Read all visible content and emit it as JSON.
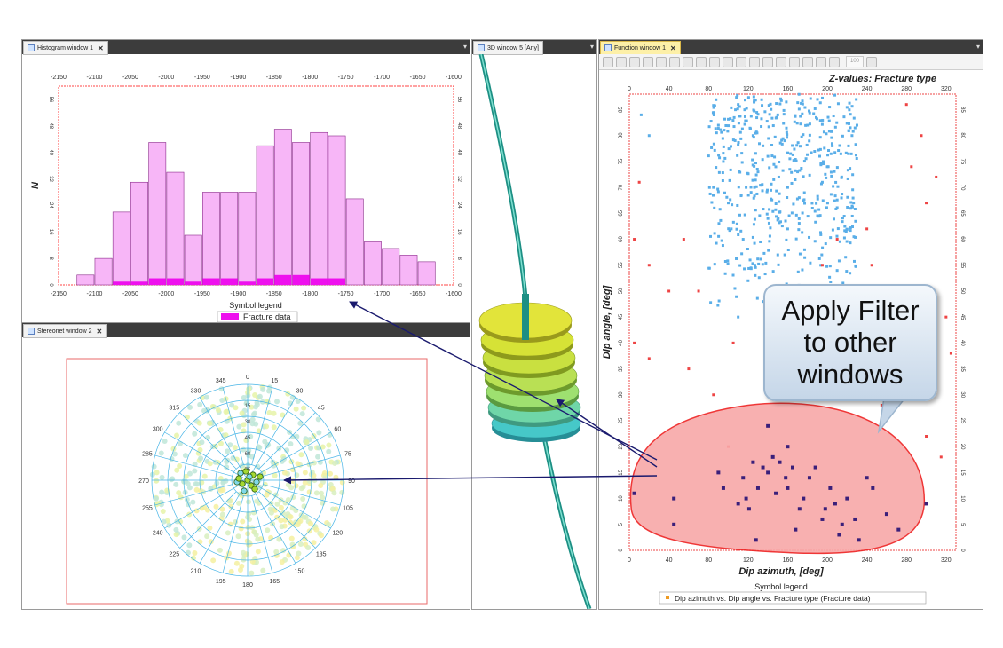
{
  "windows": {
    "histogram": {
      "title": "Histogram window 1"
    },
    "stereonet": {
      "title": "Stereonet window 2"
    },
    "view3d": {
      "title": "3D window 5 [Any]"
    },
    "function": {
      "title": "Function window 1"
    }
  },
  "histogram": {
    "ylabel": "N",
    "legend_title": "Symbol legend",
    "legend_item": "Fracture data",
    "x_ticks": [
      "-2150",
      "-2100",
      "-2050",
      "-2000",
      "-1950",
      "-1900",
      "-1850",
      "-1800",
      "-1750",
      "-1700",
      "-1650",
      "-1600"
    ],
    "y_ticks": [
      "0",
      "8",
      "16",
      "24",
      "32",
      "40",
      "48",
      "56"
    ],
    "colors": {
      "bar": "#f7b6f7",
      "bar_edge": "#8a2a8a",
      "highlight": "#ee10ee",
      "frame": "#ff4444"
    }
  },
  "stereonet": {
    "azimuth_labels": [
      "0",
      "15",
      "30",
      "45",
      "60",
      "75",
      "90",
      "105",
      "120",
      "135",
      "150",
      "165",
      "180",
      "195",
      "210",
      "225",
      "240",
      "255",
      "270",
      "285",
      "300",
      "315",
      "330",
      "345"
    ],
    "radial_labels": [
      "75",
      "60",
      "45",
      "30",
      "15"
    ]
  },
  "function_window": {
    "zvalues_label": "Z-values: Fracture type",
    "xlabel": "Dip azimuth, [deg]",
    "ylabel": "Dip angle, [deg]",
    "x_ticks": [
      "0",
      "40",
      "80",
      "120",
      "160",
      "200",
      "240",
      "280",
      "320"
    ],
    "y_ticks": [
      "0",
      "5",
      "10",
      "15",
      "20",
      "25",
      "30",
      "35",
      "40",
      "45",
      "50",
      "55",
      "60",
      "65",
      "70",
      "75",
      "80",
      "85"
    ],
    "legend_title": "Symbol legend",
    "legend_item": "Dip azimuth vs. Dip angle vs. Fracture type (Fracture data)",
    "zoom_value": "100",
    "colors": {
      "blue": "#5aaee8",
      "red": "#ee4444",
      "selected": "#3a1f7a",
      "lasso_fill": "#f8a8a8",
      "lasso_edge": "#ee2222"
    }
  },
  "callout": {
    "lines": [
      "Apply Filter",
      "to other",
      "windows"
    ]
  },
  "chart_data": [
    {
      "type": "bar",
      "title": "",
      "xlabel": "",
      "ylabel": "N",
      "xlim": [
        -2150,
        -1600
      ],
      "ylim": [
        0,
        60
      ],
      "bin_edges": [
        -2125,
        -2100,
        -2075,
        -2050,
        -2025,
        -2000,
        -1975,
        -1950,
        -1925,
        -1900,
        -1875,
        -1850,
        -1825,
        -1800,
        -1775,
        -1750,
        -1725,
        -1700,
        -1675,
        -1650,
        -1625
      ],
      "series": [
        {
          "name": "Fracture data",
          "values": [
            3,
            8,
            22,
            31,
            43,
            34,
            15,
            28,
            28,
            28,
            42,
            47,
            43,
            46,
            45,
            26,
            13,
            11,
            9,
            7
          ]
        },
        {
          "name": "",
          "values": [
            0,
            0,
            1,
            1,
            2,
            2,
            1,
            2,
            2,
            1,
            2,
            3,
            3,
            2,
            2,
            0,
            0,
            0,
            0,
            0
          ]
        }
      ]
    },
    {
      "type": "scatter",
      "title": "",
      "xlabel": "Dip azimuth, [deg]",
      "ylabel": "Dip angle, [deg]",
      "xlim": [
        0,
        330
      ],
      "ylim": [
        0,
        88
      ],
      "legend": "Z-values: Fracture type",
      "series": [
        {
          "name": "",
          "points": [
            [
              12,
              84
            ],
            [
              20,
              80
            ],
            [
              110,
              86
            ],
            [
              125,
              80
            ],
            [
              150,
              84
            ],
            [
              180,
              82
            ],
            [
              205,
              78
            ],
            [
              95,
              75
            ],
            [
              130,
              73
            ],
            [
              160,
              70
            ],
            [
              100,
              67
            ],
            [
              140,
              64
            ],
            [
              185,
              66
            ],
            [
              115,
              60
            ],
            [
              150,
              57
            ],
            [
              120,
              52
            ],
            [
              135,
              48
            ],
            [
              170,
              73
            ],
            [
              195,
              71
            ],
            [
              90,
              82
            ],
            [
              225,
              80
            ],
            [
              140,
              76
            ],
            [
              118,
              70
            ],
            [
              103,
              62
            ],
            [
              160,
              62
            ],
            [
              122,
              56
            ],
            [
              150,
              50
            ],
            [
              110,
              45
            ],
            [
              145,
              44
            ],
            [
              200,
              74
            ],
            [
              230,
              82
            ],
            [
              85,
              70
            ]
          ]
        },
        {
          "name": "",
          "points": [
            [
              10,
              71
            ],
            [
              5,
              60
            ],
            [
              20,
              55
            ],
            [
              40,
              50
            ],
            [
              5,
              40
            ],
            [
              20,
              37
            ],
            [
              55,
              60
            ],
            [
              60,
              35
            ],
            [
              70,
              50
            ],
            [
              85,
              30
            ],
            [
              100,
              20
            ],
            [
              105,
              40
            ],
            [
              195,
              55
            ],
            [
              210,
              60
            ],
            [
              240,
              62
            ],
            [
              245,
              55
            ],
            [
              260,
              45
            ],
            [
              270,
              38
            ],
            [
              280,
              86
            ],
            [
              285,
              74
            ],
            [
              295,
              80
            ],
            [
              300,
              67
            ],
            [
              310,
              72
            ],
            [
              320,
              45
            ],
            [
              325,
              38
            ],
            [
              290,
              30
            ],
            [
              300,
              22
            ],
            [
              315,
              18
            ],
            [
              240,
              40
            ],
            [
              255,
              28
            ]
          ]
        },
        {
          "name": "",
          "points": [
            [
              5,
              11
            ],
            [
              45,
              10
            ],
            [
              45,
              5
            ],
            [
              90,
              15
            ],
            [
              95,
              12
            ],
            [
              110,
              9
            ],
            [
              115,
              14
            ],
            [
              118,
              10
            ],
            [
              121,
              8
            ],
            [
              125,
              17
            ],
            [
              130,
              12
            ],
            [
              135,
              16
            ],
            [
              140,
              15
            ],
            [
              145,
              18
            ],
            [
              148,
              11
            ],
            [
              152,
              17
            ],
            [
              158,
              14
            ],
            [
              160,
              12
            ],
            [
              165,
              16
            ],
            [
              168,
              4
            ],
            [
              172,
              8
            ],
            [
              176,
              10
            ],
            [
              182,
              14
            ],
            [
              188,
              16
            ],
            [
              195,
              6
            ],
            [
              198,
              8
            ],
            [
              203,
              12
            ],
            [
              208,
              9
            ],
            [
              212,
              3
            ],
            [
              215,
              5
            ],
            [
              220,
              10
            ],
            [
              228,
              6
            ],
            [
              232,
              2
            ],
            [
              240,
              14
            ],
            [
              246,
              12
            ],
            [
              260,
              7
            ],
            [
              272,
              4
            ],
            [
              300,
              9
            ],
            [
              128,
              2
            ],
            [
              140,
              24
            ],
            [
              160,
              20
            ]
          ]
        }
      ]
    }
  ]
}
